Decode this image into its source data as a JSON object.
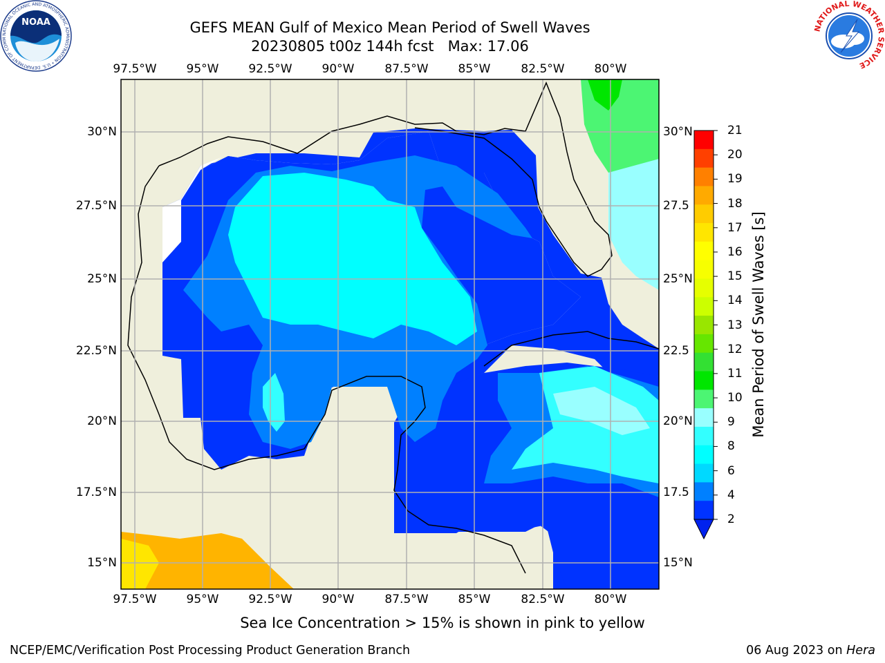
{
  "header": {
    "title": "GEFS MEAN Gulf of Mexico Mean Period of Swell Waves",
    "subtitle": "20230805 t00z 144h fcst",
    "max_label": "Max: 17.06"
  },
  "logos": {
    "noaa": {
      "text": "NOAA",
      "ring_text": "NATIONAL OCEANIC AND ATMOSPHERIC ADMINISTRATION • U.S. DEPARTMENT OF COMMERCE"
    },
    "nws": {
      "ring_text": "NATIONAL WEATHER SERVICE"
    }
  },
  "map": {
    "lon_ticks": [
      "97.5°W",
      "95°W",
      "92.5°W",
      "90°W",
      "87.5°W",
      "85°W",
      "82.5°W",
      "80°W"
    ],
    "lat_ticks_left": [
      "30°N",
      "27.5°N",
      "25°N",
      "22.5°N",
      "20°N",
      "17.5°N",
      "15°N"
    ],
    "lat_ticks_right": [
      "30°N",
      "27.5",
      "25°N",
      "22.5",
      "20°N",
      "17.5",
      "15°N"
    ],
    "extent": {
      "lon_min": -98,
      "lon_max": -78.2,
      "lat_min": 14,
      "lat_max": 31.5
    },
    "colors": {
      "land": "#efefdc",
      "coast": "#000000",
      "grid": "#b0b0b0"
    }
  },
  "colorbar": {
    "label": "Mean Period of Swell Waves [s]",
    "ticks": [
      "2",
      "4",
      "6",
      "8",
      "9",
      "10",
      "11",
      "12",
      "13",
      "14",
      "15",
      "16",
      "17",
      "18",
      "19",
      "20",
      "21"
    ],
    "colors": [
      "#0033ff",
      "#0080ff",
      "#00d9ff",
      "#00ffff",
      "#33ffff",
      "#99ffff",
      "#4cf573",
      "#00e600",
      "#33e033",
      "#66e600",
      "#99e600",
      "#ccff00",
      "#e6ff00",
      "#f7ff00",
      "#ffff00",
      "#ffe600",
      "#ffcc00",
      "#ffaa00",
      "#ff8000",
      "#ff4000",
      "#ff0000"
    ],
    "under_color": "#0022ee"
  },
  "caption": "Sea Ice Concentration > 15% is shown in pink to yellow",
  "footer": {
    "left": "NCEP/EMC/Verification Post Processing Product Generation Branch",
    "date": "06 Aug 2023",
    "on": "on",
    "machine": "Hera"
  }
}
